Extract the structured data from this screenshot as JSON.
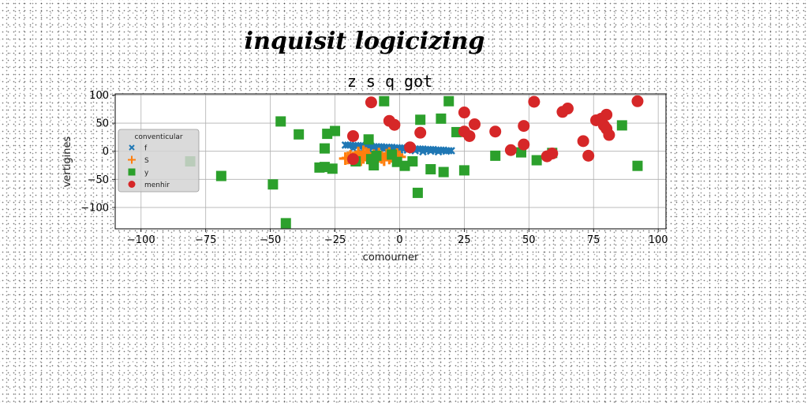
{
  "chart_data": {
    "type": "scatter",
    "supertitle": "inquisit logicizing",
    "title": "z s q got",
    "xlabel": "comourner",
    "ylabel": "vertigines",
    "xlim": [
      -110,
      103
    ],
    "ylim": [
      -138,
      102
    ],
    "xticks": [
      -100,
      -75,
      -50,
      -25,
      0,
      25,
      50,
      75,
      100
    ],
    "yticks": [
      -100,
      -50,
      0,
      50,
      100
    ],
    "xtick_labels": [
      "−100",
      "−75",
      "−50",
      "−25",
      "0",
      "25",
      "50",
      "75",
      "100"
    ],
    "ytick_labels": [
      "−100",
      "−50",
      "0",
      "50",
      "100"
    ],
    "grid": true,
    "legend": {
      "title": "conventicular",
      "placement": "center-left"
    },
    "series": [
      {
        "name": "f",
        "marker": "x",
        "color": "#1f77b4",
        "points": [
          [
            -21,
            11
          ],
          [
            -20,
            11
          ],
          [
            -19,
            11
          ],
          [
            -18,
            10
          ],
          [
            -17,
            10
          ],
          [
            -16,
            10
          ],
          [
            -15,
            10
          ],
          [
            -14,
            9
          ],
          [
            -13,
            9
          ],
          [
            -12,
            9
          ],
          [
            -11,
            9
          ],
          [
            -10,
            8
          ],
          [
            -9,
            8
          ],
          [
            -8,
            8
          ],
          [
            -7,
            8
          ],
          [
            -6,
            7
          ],
          [
            -5,
            7
          ],
          [
            -4,
            7
          ],
          [
            -3,
            7
          ],
          [
            -2,
            6
          ],
          [
            -1,
            6
          ],
          [
            0,
            6
          ],
          [
            1,
            6
          ],
          [
            2,
            5
          ],
          [
            3,
            5
          ],
          [
            4,
            5
          ],
          [
            5,
            5
          ],
          [
            6,
            4
          ],
          [
            7,
            4
          ],
          [
            8,
            4
          ],
          [
            9,
            4
          ],
          [
            10,
            3
          ],
          [
            11,
            3
          ],
          [
            12,
            3
          ],
          [
            13,
            3
          ],
          [
            14,
            2
          ],
          [
            15,
            2
          ],
          [
            16,
            2
          ],
          [
            17,
            2
          ],
          [
            18,
            1
          ],
          [
            19,
            1
          ],
          [
            20,
            1
          ],
          [
            -18,
            5
          ],
          [
            -12,
            4
          ],
          [
            -6,
            3
          ],
          [
            0,
            2
          ],
          [
            6,
            1
          ],
          [
            12,
            0
          ],
          [
            18,
            0
          ],
          [
            -15,
            -1
          ],
          [
            -9,
            0
          ],
          [
            -3,
            1
          ],
          [
            3,
            2
          ],
          [
            9,
            -1
          ],
          [
            15,
            -1
          ]
        ]
      },
      {
        "name": "S",
        "marker": "plus",
        "color": "#ff7f0e",
        "points": [
          [
            -21,
            -13
          ],
          [
            -20,
            -12
          ],
          [
            -19,
            -9
          ],
          [
            -18,
            -14
          ],
          [
            -17,
            -10
          ],
          [
            -16,
            -7
          ],
          [
            -15,
            -15
          ],
          [
            -14,
            -11
          ],
          [
            -13,
            -4
          ],
          [
            -12,
            -12
          ],
          [
            -11,
            -16
          ],
          [
            -10,
            -8
          ],
          [
            -9,
            -13
          ],
          [
            -8,
            -5
          ],
          [
            -7,
            -11
          ],
          [
            -6,
            -15
          ],
          [
            -5,
            -7
          ],
          [
            -4,
            -12
          ],
          [
            -3,
            -9
          ],
          [
            -2,
            -14
          ],
          [
            -1,
            -6
          ],
          [
            0,
            -10
          ],
          [
            -16,
            -3
          ],
          [
            -12,
            -6
          ],
          [
            -8,
            -9
          ],
          [
            -4,
            -4
          ],
          [
            -2,
            -16
          ],
          [
            -14,
            -1
          ],
          [
            -10,
            -14
          ]
        ]
      },
      {
        "name": "y",
        "marker": "square",
        "color": "#2ca02c",
        "points": [
          [
            -81,
            -18
          ],
          [
            -69,
            -44
          ],
          [
            -46,
            53
          ],
          [
            -44,
            -128
          ],
          [
            -49,
            -59
          ],
          [
            -39,
            30
          ],
          [
            -31,
            -29
          ],
          [
            -29,
            -28
          ],
          [
            -29,
            5
          ],
          [
            -28,
            31
          ],
          [
            -26,
            -31
          ],
          [
            -25,
            36
          ],
          [
            -17,
            -18
          ],
          [
            -12,
            21
          ],
          [
            -11,
            -14
          ],
          [
            -10,
            -25
          ],
          [
            -9,
            -8
          ],
          [
            -6,
            89
          ],
          [
            -3,
            -6
          ],
          [
            -1,
            -19
          ],
          [
            2,
            -26
          ],
          [
            5,
            -18
          ],
          [
            7,
            -74
          ],
          [
            8,
            56
          ],
          [
            12,
            -32
          ],
          [
            16,
            58
          ],
          [
            17,
            -37
          ],
          [
            19,
            89
          ],
          [
            22,
            34
          ],
          [
            25,
            -34
          ],
          [
            37,
            -8
          ],
          [
            47,
            -2
          ],
          [
            53,
            -16
          ],
          [
            59,
            -3
          ],
          [
            86,
            46
          ],
          [
            92,
            -26
          ]
        ]
      },
      {
        "name": "menhir",
        "marker": "circle",
        "color": "#d62728",
        "points": [
          [
            -18,
            27
          ],
          [
            -18,
            -14
          ],
          [
            -11,
            87
          ],
          [
            -4,
            54
          ],
          [
            -2,
            47
          ],
          [
            4,
            7
          ],
          [
            8,
            33
          ],
          [
            25,
            69
          ],
          [
            25,
            35
          ],
          [
            27,
            27
          ],
          [
            29,
            48
          ],
          [
            37,
            35
          ],
          [
            43,
            2
          ],
          [
            48,
            45
          ],
          [
            48,
            12
          ],
          [
            52,
            88
          ],
          [
            57,
            -9
          ],
          [
            59,
            -4
          ],
          [
            63,
            70
          ],
          [
            65,
            76
          ],
          [
            71,
            18
          ],
          [
            73,
            -8
          ],
          [
            76,
            55
          ],
          [
            78,
            58
          ],
          [
            79,
            46
          ],
          [
            80,
            40
          ],
          [
            80,
            65
          ],
          [
            81,
            29
          ],
          [
            92,
            89
          ]
        ]
      }
    ]
  }
}
